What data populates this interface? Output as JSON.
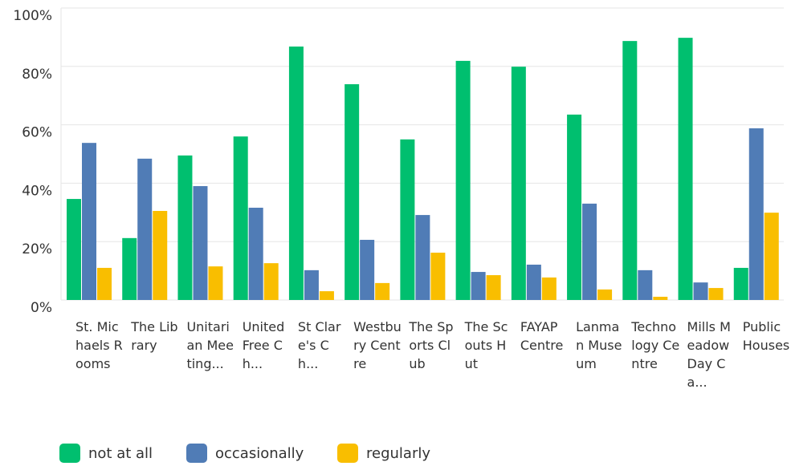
{
  "chart_data": {
    "type": "bar",
    "categories": [
      "St. Michaels Rooms",
      "The Library",
      "Unitarian Meeting...",
      "United Free Ch...",
      "St Clare's Ch...",
      "Westbury Centre",
      "The Sports Club",
      "The Scouts Hut",
      "FAYAP Centre",
      "Lanman Museum",
      "Technology Centre",
      "Mills Meadow Day Ca...",
      "Public Houses"
    ],
    "series": [
      {
        "name": "not at all",
        "color": "#00bf6f",
        "values": [
          34.6,
          21.2,
          49.5,
          56,
          86.8,
          73.9,
          55,
          81.9,
          79.9,
          63.5,
          88.7,
          89.8,
          11
        ]
      },
      {
        "name": "occasionally",
        "color": "#507cb6",
        "values": [
          53.8,
          48.4,
          39,
          31.6,
          10.2,
          20.6,
          29.1,
          9.6,
          12.1,
          33,
          10.2,
          6,
          58.8
        ]
      },
      {
        "name": "regularly",
        "color": "#f9be00",
        "values": [
          11,
          30.5,
          11.5,
          12.6,
          3,
          5.8,
          16.2,
          8.5,
          7.7,
          3.6,
          1.1,
          4.1,
          29.9
        ]
      }
    ],
    "ylim": [
      0,
      100
    ],
    "yticks": [
      {
        "value": 0,
        "label": "0%"
      },
      {
        "value": 20,
        "label": "20%"
      },
      {
        "value": 40,
        "label": "40%"
      },
      {
        "value": 60,
        "label": "60%"
      },
      {
        "value": 80,
        "label": "80%"
      },
      {
        "value": 100,
        "label": "100%"
      }
    ],
    "grid": true,
    "legend": "bottom"
  }
}
